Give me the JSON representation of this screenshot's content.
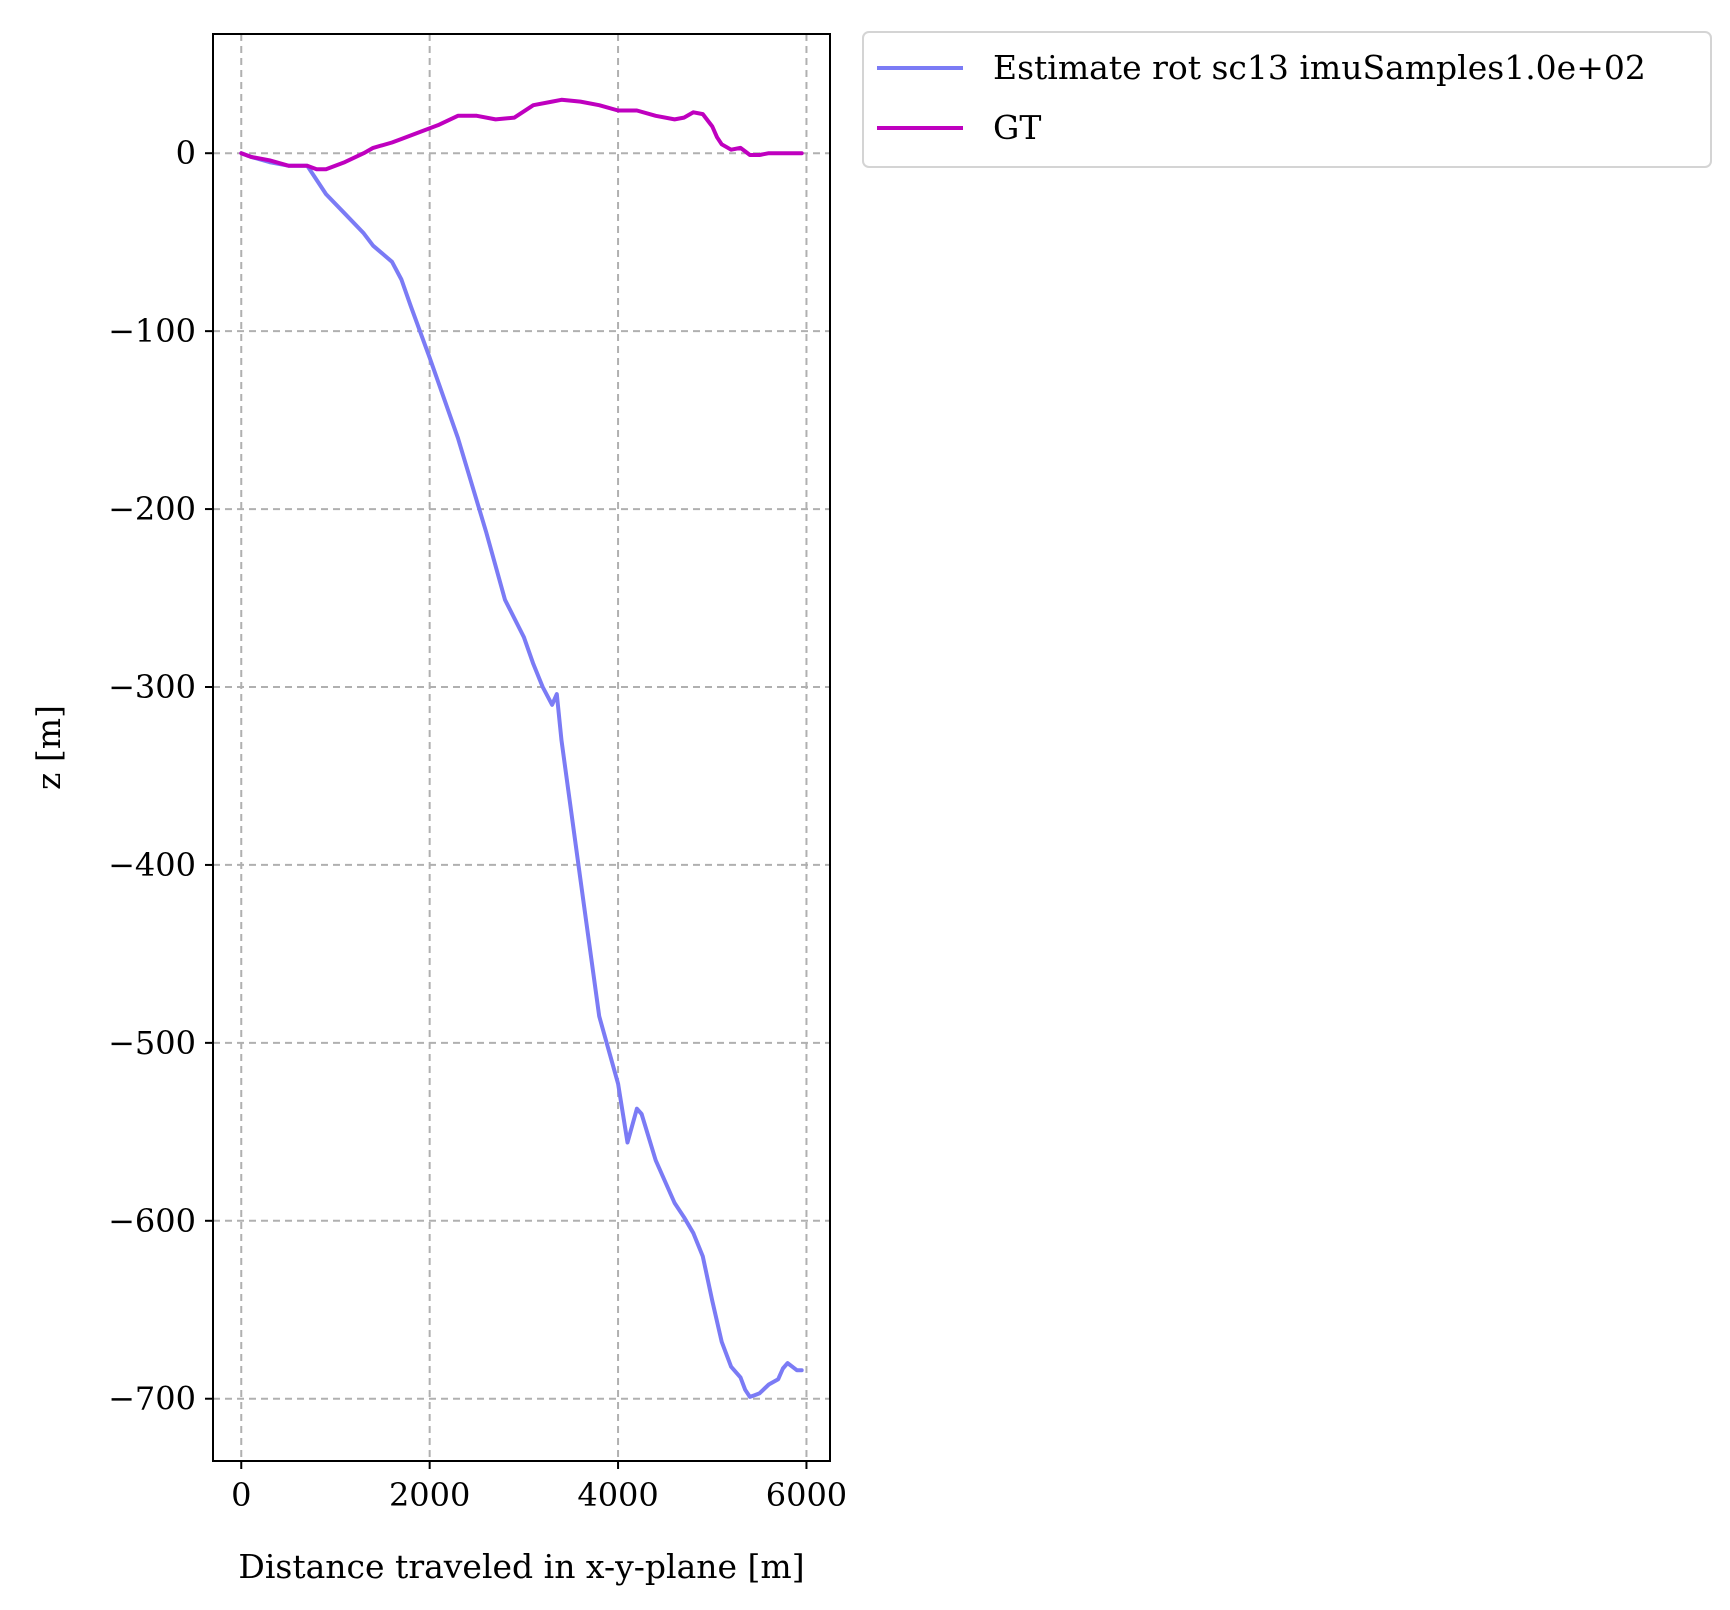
{
  "chart_data": {
    "type": "line",
    "title": "",
    "xlabel": "Distance traveled in x-y-plane [m]",
    "ylabel": "z [m]",
    "xlim": [
      -300,
      6250
    ],
    "ylim": [
      -735,
      67
    ],
    "xticks": [
      0,
      2000,
      4000,
      6000
    ],
    "xtick_labels": [
      "0",
      "2000",
      "4000",
      "6000"
    ],
    "yticks": [
      0,
      -100,
      -200,
      -300,
      -400,
      -500,
      -600,
      -700
    ],
    "ytick_labels": [
      "0",
      "−100",
      "−200",
      "−300",
      "−400",
      "−500",
      "−600",
      "−700"
    ],
    "grid": true,
    "legend_position": "outside-top-right",
    "series": [
      {
        "name": "Estimate rot sc13 imuSamples1.0e+02",
        "color": "#7b7bf5",
        "x": [
          0,
          100,
          300,
          500,
          700,
          800,
          900,
          1100,
          1300,
          1400,
          1600,
          1700,
          1800,
          2000,
          2300,
          2600,
          2800,
          3000,
          3100,
          3200,
          3300,
          3350,
          3400,
          3600,
          3800,
          4000,
          4100,
          4200,
          4250,
          4400,
          4600,
          4700,
          4800,
          4900,
          5000,
          5100,
          5200,
          5300,
          5350,
          5400,
          5450,
          5500,
          5600,
          5700,
          5750,
          5800,
          5850,
          5900,
          5950
        ],
        "y": [
          0,
          -2,
          -5,
          -7,
          -7,
          -15,
          -23,
          -34,
          -45,
          -52,
          -61,
          -71,
          -86,
          -115,
          -160,
          -213,
          -251,
          -272,
          -287,
          -300,
          -310,
          -304,
          -330,
          -408,
          -485,
          -523,
          -556,
          -537,
          -540,
          -566,
          -590,
          -598,
          -607,
          -620,
          -645,
          -668,
          -682,
          -688,
          -695,
          -699,
          -698,
          -697,
          -692,
          -689,
          -683,
          -680,
          -682,
          -684,
          -684
        ]
      },
      {
        "name": "GT",
        "color": "#bf00bf",
        "x": [
          0,
          100,
          300,
          500,
          700,
          800,
          900,
          1100,
          1300,
          1400,
          1600,
          1700,
          1900,
          2100,
          2300,
          2500,
          2700,
          2900,
          3100,
          3300,
          3400,
          3600,
          3800,
          4000,
          4200,
          4400,
          4600,
          4700,
          4800,
          4900,
          5000,
          5050,
          5100,
          5200,
          5300,
          5350,
          5400,
          5500,
          5600,
          5700,
          5800,
          5900,
          5950
        ],
        "y": [
          0,
          -2,
          -4,
          -7,
          -7,
          -9,
          -9,
          -5,
          0,
          3,
          6,
          8,
          12,
          16,
          21,
          21,
          19,
          20,
          27,
          29,
          30,
          29,
          27,
          24,
          24,
          21,
          19,
          20,
          23,
          22,
          15,
          9,
          5,
          2,
          3,
          1,
          -1,
          -1,
          0,
          0,
          0,
          0,
          0
        ]
      }
    ]
  }
}
